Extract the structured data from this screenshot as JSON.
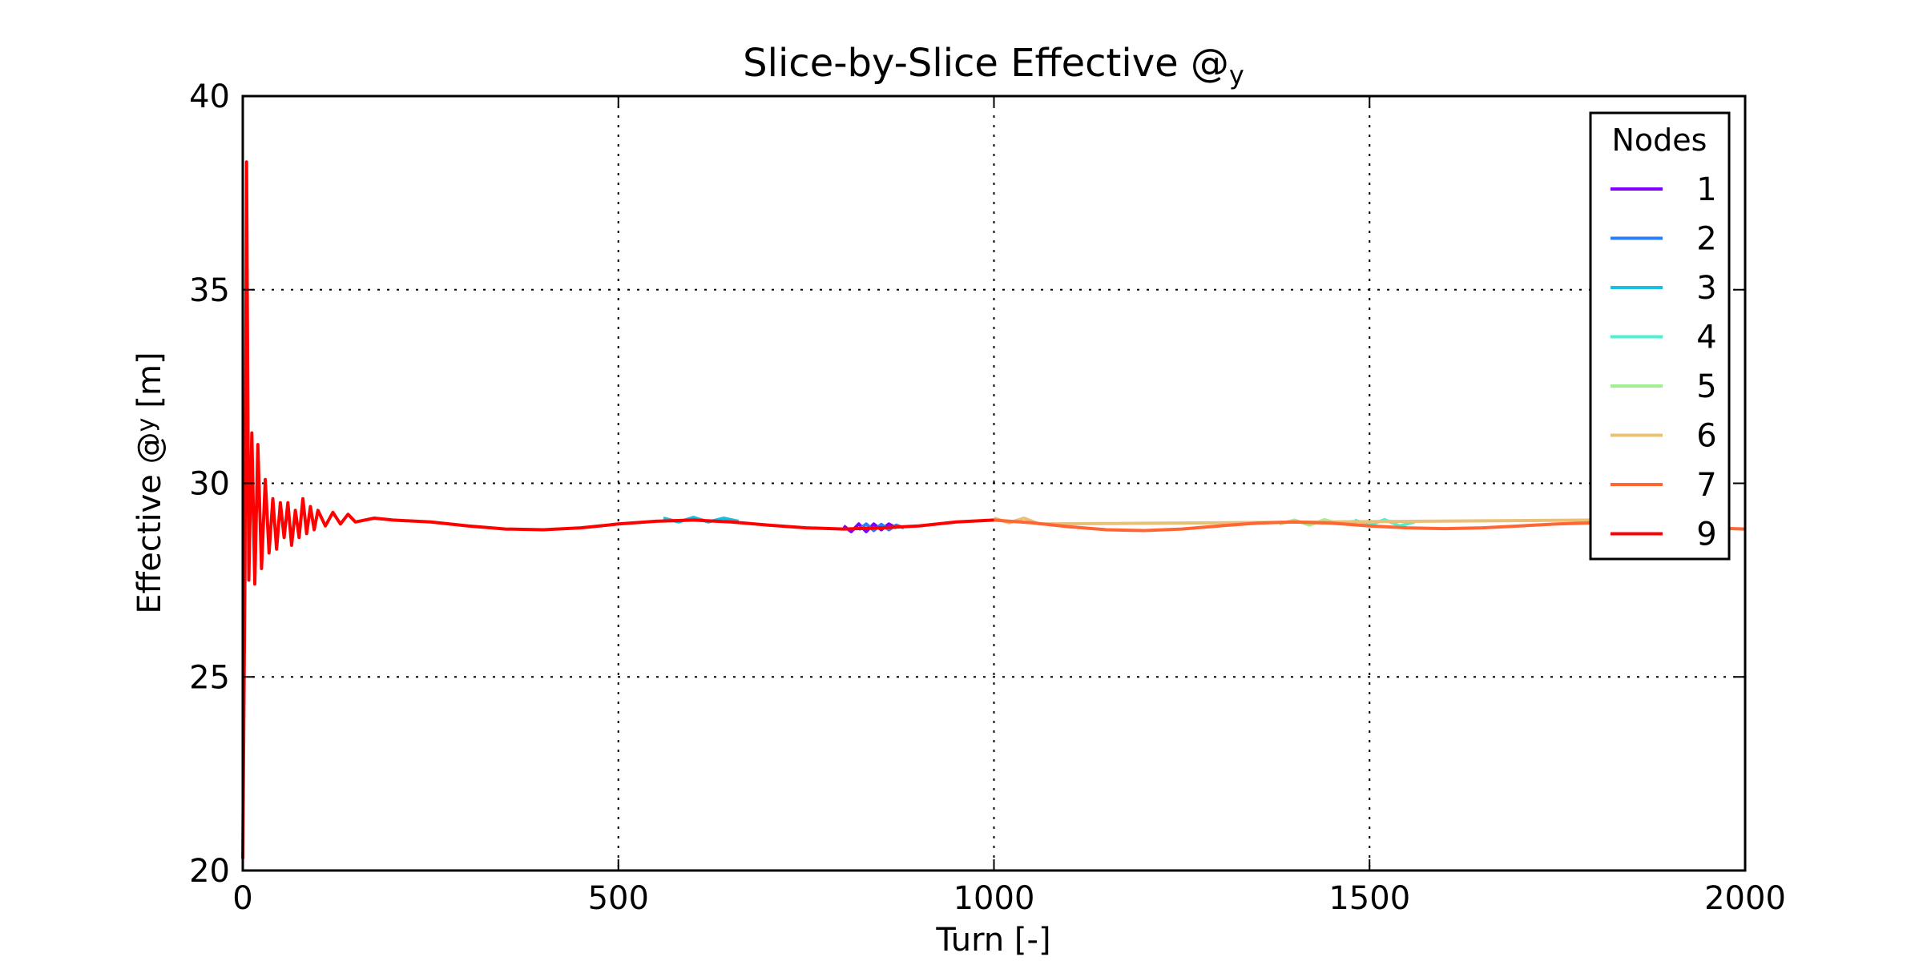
{
  "chart_data": {
    "type": "line",
    "title": "Slice-by-Slice Effective @",
    "title_subscript": "y",
    "xlabel": "Turn [-]",
    "ylabel": "Effective @",
    "ylabel_subscript": "y",
    "ylabel_unit": "[m]",
    "xlim": [
      0,
      2000
    ],
    "ylim": [
      20,
      40
    ],
    "xticks": [
      0,
      500,
      1000,
      1500,
      2000
    ],
    "yticks": [
      20,
      25,
      30,
      35,
      40
    ],
    "grid": true,
    "legend": {
      "title": "Nodes",
      "placement": "top-right"
    },
    "series": [
      {
        "name": "1",
        "color": "#8000ff",
        "x": [
          800,
          810,
          820,
          830,
          840,
          850,
          860,
          870
        ],
        "y": [
          28.9,
          28.75,
          28.95,
          28.75,
          28.95,
          28.8,
          28.95,
          28.85
        ]
      },
      {
        "name": "2",
        "color": "#2c7ef7",
        "x": [
          820,
          830,
          840,
          850,
          860,
          870,
          880
        ],
        "y": [
          28.8,
          28.95,
          28.78,
          28.94,
          28.8,
          28.92,
          28.85
        ]
      },
      {
        "name": "3",
        "color": "#18bfe0",
        "x": [
          560,
          580,
          600,
          620,
          640,
          660
        ],
        "y": [
          29.1,
          29.0,
          29.12,
          29.0,
          29.1,
          29.02
        ]
      },
      {
        "name": "4",
        "color": "#4ff0d0",
        "x": [
          1480,
          1500,
          1520,
          1540,
          1560
        ],
        "y": [
          29.05,
          28.92,
          29.06,
          28.9,
          29.0
        ]
      },
      {
        "name": "5",
        "color": "#a0f090",
        "x": [
          1380,
          1400,
          1420,
          1440,
          1460,
          1480
        ],
        "y": [
          28.95,
          29.05,
          28.92,
          29.06,
          28.95,
          29.02
        ]
      },
      {
        "name": "6",
        "color": "#e8c078",
        "x": [
          1000,
          1020,
          1040,
          1060,
          1800,
          1820,
          1840
        ],
        "y": [
          29.1,
          28.98,
          29.1,
          28.95,
          29.05,
          28.92,
          29.02
        ]
      },
      {
        "name": "7",
        "color": "#ff6633",
        "x": [
          1000,
          1050,
          1100,
          1150,
          1200,
          1250,
          1300,
          1350,
          1400,
          1450,
          1500,
          1550,
          1600,
          1650,
          1700,
          1750,
          1800,
          1850,
          1900,
          1950,
          2000
        ],
        "y": [
          29.05,
          28.98,
          28.88,
          28.8,
          28.78,
          28.82,
          28.9,
          28.97,
          29.0,
          28.97,
          28.9,
          28.85,
          28.83,
          28.85,
          28.9,
          28.95,
          28.98,
          28.95,
          28.9,
          28.85,
          28.82
        ]
      },
      {
        "name": "9",
        "color": "#ff0000",
        "x": [
          0,
          3,
          5,
          8,
          12,
          16,
          20,
          25,
          30,
          35,
          40,
          45,
          50,
          55,
          60,
          65,
          70,
          75,
          80,
          85,
          90,
          95,
          100,
          110,
          120,
          130,
          140,
          150,
          175,
          200,
          250,
          300,
          350,
          400,
          450,
          500,
          550,
          600,
          650,
          700,
          750,
          800,
          850,
          900,
          950,
          1000
        ],
        "y": [
          20.3,
          28.0,
          38.3,
          27.5,
          31.3,
          27.4,
          31.0,
          27.8,
          30.1,
          28.2,
          29.6,
          28.3,
          29.5,
          28.6,
          29.5,
          28.4,
          29.3,
          28.6,
          29.6,
          28.7,
          29.4,
          28.8,
          29.3,
          28.9,
          29.25,
          28.95,
          29.2,
          29.0,
          29.1,
          29.05,
          29.0,
          28.9,
          28.82,
          28.8,
          28.85,
          28.95,
          29.02,
          29.05,
          29.0,
          28.92,
          28.85,
          28.82,
          28.85,
          28.9,
          29.0,
          29.05
        ]
      }
    ]
  }
}
